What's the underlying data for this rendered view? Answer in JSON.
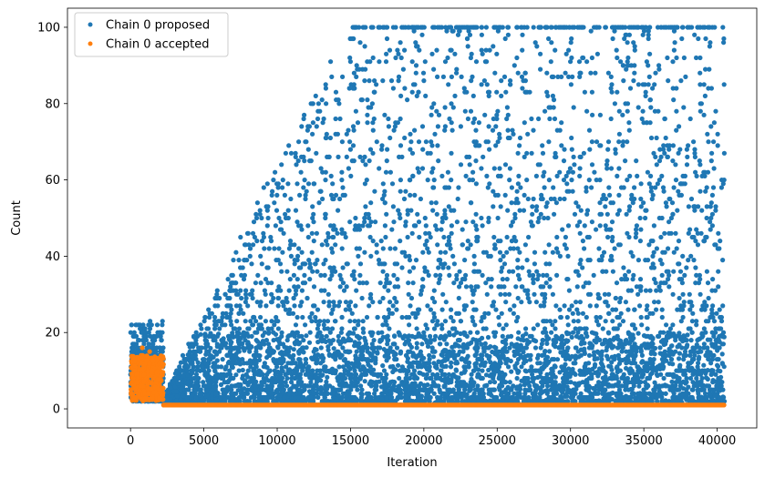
{
  "chart_data": {
    "type": "scatter",
    "xlabel": "Iteration",
    "ylabel": "Count",
    "xlim": [
      -4300,
      42700
    ],
    "ylim": [
      -5,
      105
    ],
    "x_ticks": [
      0,
      5000,
      10000,
      15000,
      20000,
      25000,
      30000,
      35000,
      40000
    ],
    "y_ticks": [
      0,
      20,
      40,
      60,
      80,
      100
    ],
    "grid": false,
    "legend_position": "top-left",
    "colors": {
      "proposed": "#1f77b4",
      "accepted": "#ff7f0e"
    },
    "series": [
      {
        "name": "Chain 0 proposed",
        "color": "#1f77b4",
        "clusters": [
          {
            "x_range": [
              0,
              2250
            ],
            "y_range": [
              2,
              16
            ],
            "n": 500,
            "center": 9
          },
          {
            "x_range": [
              0,
              2250
            ],
            "y_range": [
              16,
              23
            ],
            "n": 60
          }
        ],
        "envelope": [
          {
            "x": 2250,
            "y_max": 3
          },
          {
            "x": 5000,
            "y_max": 25
          },
          {
            "x": 7500,
            "y_max": 45
          },
          {
            "x": 10000,
            "y_max": 65
          },
          {
            "x": 15000,
            "y_max": 100
          },
          {
            "x": 20000,
            "y_max": 100
          },
          {
            "x": 25000,
            "y_max": 100
          },
          {
            "x": 30000,
            "y_max": 100
          },
          {
            "x": 35000,
            "y_max": 100
          },
          {
            "x": 40500,
            "y_max": 100
          }
        ],
        "x_max": 40500,
        "y_min": 1,
        "y_max": 100,
        "n_points": 5000
      },
      {
        "name": "Chain 0 accepted",
        "color": "#ff7f0e",
        "clusters": [
          {
            "x_range": [
              0,
              2250
            ],
            "y_range": [
              2,
              14
            ],
            "n": 420,
            "center": 7
          }
        ],
        "baseline": {
          "x_range": [
            2250,
            40500
          ],
          "y": 1
        },
        "outliers": [
          {
            "x": 800,
            "y": 16
          },
          {
            "x": 1300,
            "y": 15
          }
        ]
      }
    ]
  }
}
